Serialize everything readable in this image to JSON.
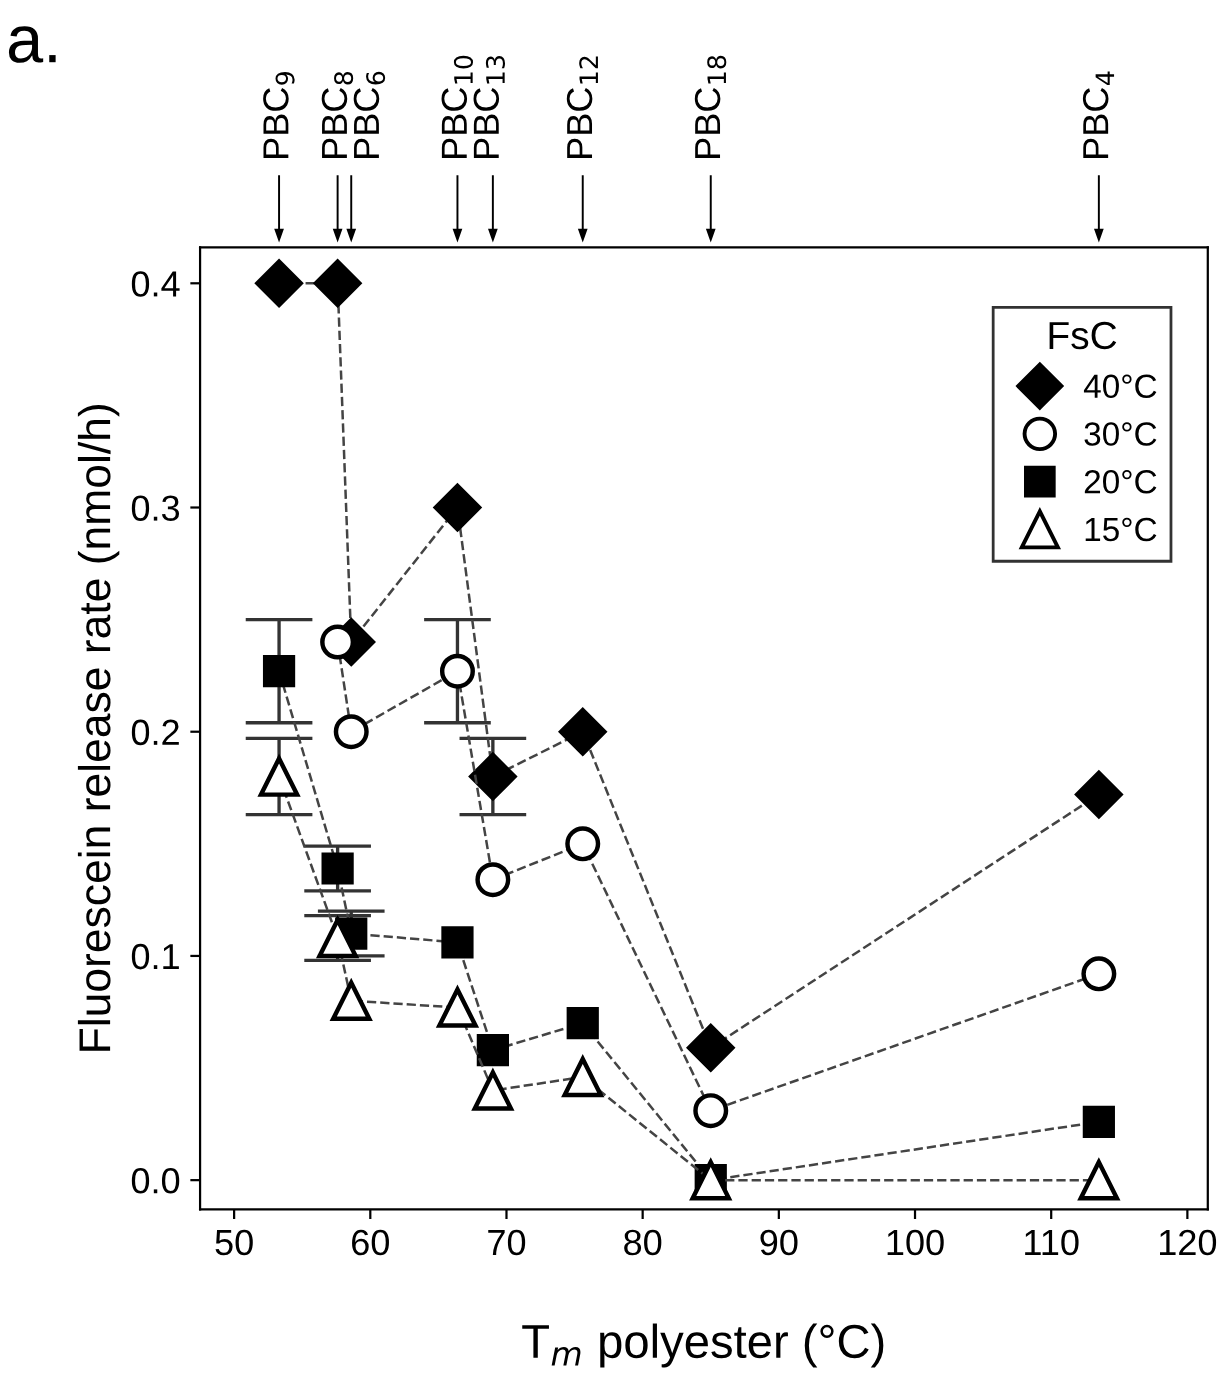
{
  "chart_data": {
    "type": "line",
    "xlabel": "T$_{m}$ polyester (°C)",
    "ylabel": "Fluorescein release rate (nmol/h)",
    "legend_title": "FsC",
    "x": [
      53.3,
      57.6,
      58.6,
      66.4,
      69.0,
      75.6,
      85.0,
      113.5
    ],
    "series": [
      {
        "name": "40°C",
        "color": "#000000",
        "marker": "diamond",
        "values": [
          0.4,
          0.4,
          0.24,
          0.3,
          0.18,
          0.2,
          0.059,
          0.172
        ],
        "errors": [
          null,
          null,
          null,
          null,
          0.017,
          null,
          null,
          null
        ]
      },
      {
        "name": "30°C",
        "color": "#000000",
        "marker": "circle",
        "values": [
          null,
          0.24,
          0.2,
          0.227,
          0.134,
          0.15,
          0.031,
          0.092
        ],
        "errors": [
          null,
          null,
          null,
          0.023,
          null,
          null,
          null,
          null
        ]
      },
      {
        "name": "20°C",
        "color": "#000000",
        "marker": "square",
        "values": [
          0.227,
          0.139,
          0.11,
          0.106,
          0.058,
          0.07,
          0.0,
          0.026
        ],
        "errors": [
          0.023,
          0.01,
          0.01,
          null,
          null,
          null,
          null,
          null
        ]
      },
      {
        "name": "15°C",
        "color": "#000000",
        "marker": "triangle",
        "values": [
          0.18,
          0.108,
          0.08,
          0.077,
          0.04,
          0.046,
          0.0,
          0.0
        ],
        "errors": [
          0.017,
          0.01,
          null,
          null,
          null,
          null,
          null,
          null
        ]
      }
    ],
    "line_style": "dashed",
    "xlim": [
      47.5,
      121.5
    ],
    "xticks": [
      50,
      60,
      70,
      80,
      90,
      100,
      110,
      120
    ],
    "ylim": [
      -0.013,
      0.416
    ],
    "yticks": [
      {
        "value": 0,
        "label": "0.0"
      },
      0.1,
      0.2,
      0.3,
      0.4
    ],
    "grid": false,
    "legend": "top right",
    "annotations": [
      "a.",
      "PBC$_{9}$",
      "PBC$_{8}$",
      "PBC$_{6}$",
      "PBC$_{10}$",
      "PBC$_{13}$",
      "PBC$_{12}$",
      "PBC$_{18}$",
      "PBC$_{4}$"
    ]
  }
}
